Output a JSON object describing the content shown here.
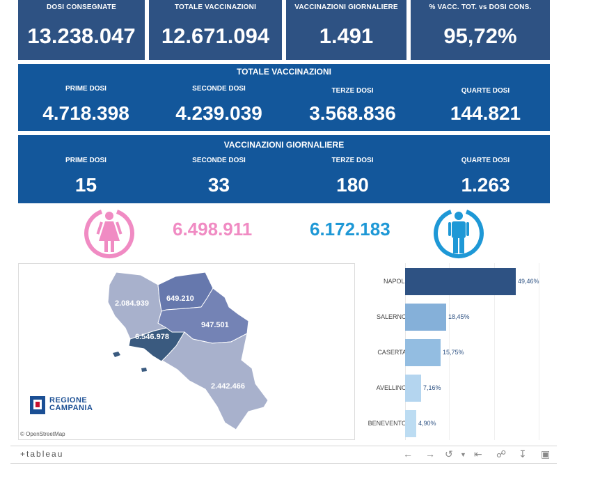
{
  "kpis": [
    {
      "label": "DOSI  CONSEGNATE",
      "value": "13.238.047"
    },
    {
      "label": "TOTALE VACCINAZIONI",
      "value": "12.671.094"
    },
    {
      "label": "VACCINAZIONI GIORNALIERE",
      "value": "1.491"
    },
    {
      "label": "% VACC. TOT. vs DOSI CONS.",
      "value": "95,72%"
    }
  ],
  "totale": {
    "title": "TOTALE VACCINAZIONI",
    "cols": [
      {
        "label": "PRIME DOSI",
        "value": "4.718.398"
      },
      {
        "label": "SECONDE DOSI",
        "value": "4.239.039"
      },
      {
        "label": "TERZE DOSI",
        "value": "3.568.836"
      },
      {
        "label": "QUARTE DOSI",
        "value": "144.821"
      }
    ]
  },
  "giornaliere": {
    "title": "VACCINAZIONI GIORNALIERE",
    "cols": [
      {
        "label": "PRIME DOSI",
        "value": "15"
      },
      {
        "label": "SECONDE DOSI",
        "value": "33"
      },
      {
        "label": "TERZE DOSI",
        "value": "180"
      },
      {
        "label": "QUARTE DOSI",
        "value": "1.263"
      }
    ]
  },
  "gender": {
    "female_value": "6.498.911",
    "male_value": "6.172.183",
    "female_color": "#f08bc3",
    "male_color": "#1e98d6",
    "female_icon": "female-icon",
    "male_icon": "male-icon"
  },
  "map": {
    "provinces": [
      {
        "name": "Caserta",
        "value": "2.084.939"
      },
      {
        "name": "Benevento",
        "value": "649.210"
      },
      {
        "name": "Avellino",
        "value": "947.501"
      },
      {
        "name": "Napoli",
        "value": "6.546.978"
      },
      {
        "name": "Salerno",
        "value": "2.442.466"
      }
    ],
    "logo_line1": "REGIONE",
    "logo_line2": "CAMPANIA",
    "attribution": "© OpenStreetMap"
  },
  "chart_data": {
    "type": "bar",
    "orientation": "horizontal",
    "categories": [
      "NAPOLI",
      "SALERNO",
      "CASERTA",
      "AVELLINO",
      "BENEVENTO"
    ],
    "values": [
      49.46,
      18.45,
      15.75,
      7.16,
      4.9
    ],
    "value_labels": [
      "49,46%",
      "18,45%",
      "15,75%",
      "7,16%",
      "4,90%"
    ],
    "colors": [
      "#2e5283",
      "#85b0d9",
      "#93bde1",
      "#b4d5ef",
      "#bcdcf2"
    ]
  },
  "toolbar": {
    "logo": "+tableau",
    "icons": [
      "undo-icon",
      "redo-icon",
      "revert-icon",
      "first-page-icon",
      "share-icon",
      "download-icon",
      "fullscreen-icon"
    ]
  }
}
